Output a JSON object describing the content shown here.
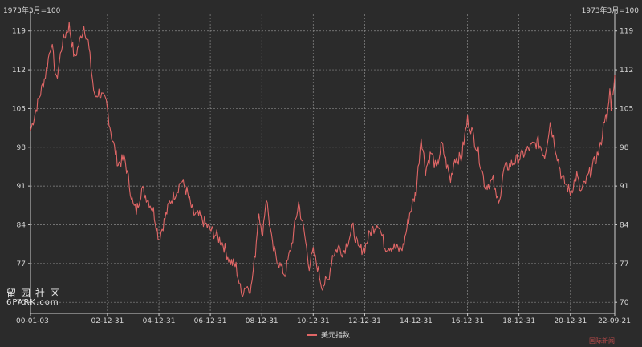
{
  "chart_data": {
    "type": "line",
    "unit_label": "1973年3月=100",
    "ylim": [
      68,
      122
    ],
    "y_ticks": [
      70,
      77,
      84,
      91,
      98,
      105,
      112,
      119
    ],
    "x_ticks": [
      "00-01-03",
      "02-12-31",
      "04-12-31",
      "06-12-31",
      "08-12-31",
      "10-12-31",
      "12-12-31",
      "14-12-31",
      "16-12-31",
      "18-12-31",
      "20-12-31",
      "22-09-21"
    ],
    "grid": true,
    "legend_position": "bottom-center",
    "series": [
      {
        "name": "美元指数",
        "color": "#e06666",
        "points": [
          [
            "2000-01-03",
            101.0
          ],
          [
            "2000-04-15",
            106.0
          ],
          [
            "2000-08-01",
            111.0
          ],
          [
            "2000-10-25",
            117.0
          ],
          [
            "2001-01-05",
            110.0
          ],
          [
            "2001-04-01",
            117.0
          ],
          [
            "2001-07-05",
            120.0
          ],
          [
            "2001-09-20",
            114.0
          ],
          [
            "2001-12-01",
            117.0
          ],
          [
            "2002-01-30",
            120.0
          ],
          [
            "2002-04-01",
            117.0
          ],
          [
            "2002-07-01",
            107.0
          ],
          [
            "2002-09-01",
            108.0
          ],
          [
            "2002-12-15",
            106.0
          ],
          [
            "2003-03-01",
            100.0
          ],
          [
            "2003-06-01",
            95.0
          ],
          [
            "2003-09-01",
            96.0
          ],
          [
            "2003-12-31",
            87.5
          ],
          [
            "2004-02-15",
            86.5
          ],
          [
            "2004-05-01",
            90.5
          ],
          [
            "2004-08-01",
            88.5
          ],
          [
            "2004-10-15",
            86.5
          ],
          [
            "2004-12-31",
            81.5
          ],
          [
            "2005-03-01",
            84.0
          ],
          [
            "2005-06-01",
            88.0
          ],
          [
            "2005-09-01",
            90.0
          ],
          [
            "2005-11-15",
            92.0
          ],
          [
            "2006-02-01",
            90.0
          ],
          [
            "2006-05-01",
            86.0
          ],
          [
            "2006-08-01",
            85.5
          ],
          [
            "2006-12-01",
            83.5
          ],
          [
            "2007-04-01",
            82.0
          ],
          [
            "2007-07-01",
            80.5
          ],
          [
            "2007-10-01",
            77.5
          ],
          [
            "2007-12-31",
            76.5
          ],
          [
            "2008-03-15",
            71.5
          ],
          [
            "2008-05-15",
            73.0
          ],
          [
            "2008-08-01",
            72.5
          ],
          [
            "2008-10-01",
            79.0
          ],
          [
            "2008-11-20",
            87.0
          ],
          [
            "2008-12-31",
            81.5
          ],
          [
            "2009-03-05",
            89.0
          ],
          [
            "2009-06-01",
            80.0
          ],
          [
            "2009-09-01",
            77.0
          ],
          [
            "2009-11-25",
            75.0
          ],
          [
            "2010-03-01",
            80.5
          ],
          [
            "2010-06-07",
            88.0
          ],
          [
            "2010-09-01",
            82.0
          ],
          [
            "2010-11-04",
            76.5
          ],
          [
            "2010-12-31",
            79.0
          ],
          [
            "2011-03-01",
            76.5
          ],
          [
            "2011-05-01",
            73.0
          ],
          [
            "2011-08-01",
            74.0
          ],
          [
            "2011-10-01",
            78.5
          ],
          [
            "2011-12-31",
            80.0
          ],
          [
            "2012-03-01",
            79.0
          ],
          [
            "2012-07-20",
            83.5
          ],
          [
            "2012-10-01",
            79.5
          ],
          [
            "2012-12-31",
            79.8
          ],
          [
            "2013-03-15",
            82.5
          ],
          [
            "2013-07-08",
            84.5
          ],
          [
            "2013-10-15",
            80.0
          ],
          [
            "2013-12-31",
            80.2
          ],
          [
            "2014-05-01",
            79.5
          ],
          [
            "2014-07-01",
            80.0
          ],
          [
            "2014-09-30",
            86.0
          ],
          [
            "2014-12-31",
            90.0
          ],
          [
            "2015-03-13",
            100.0
          ],
          [
            "2015-05-15",
            94.0
          ],
          [
            "2015-08-01",
            97.0
          ],
          [
            "2015-10-15",
            94.0
          ],
          [
            "2015-12-31",
            98.5
          ],
          [
            "2016-05-03",
            92.0
          ],
          [
            "2016-07-01",
            96.0
          ],
          [
            "2016-10-01",
            96.0
          ],
          [
            "2016-12-31",
            103.0
          ],
          [
            "2017-03-01",
            101.0
          ],
          [
            "2017-06-01",
            97.0
          ],
          [
            "2017-09-08",
            91.0
          ],
          [
            "2017-12-31",
            92.0
          ],
          [
            "2018-02-15",
            88.5
          ],
          [
            "2018-04-15",
            89.5
          ],
          [
            "2018-06-01",
            94.0
          ],
          [
            "2018-12-31",
            96.0
          ],
          [
            "2019-05-01",
            97.5
          ],
          [
            "2019-09-30",
            99.0
          ],
          [
            "2019-12-31",
            96.5
          ],
          [
            "2020-03-19",
            102.5
          ],
          [
            "2020-06-01",
            98.0
          ],
          [
            "2020-09-01",
            92.5
          ],
          [
            "2020-12-31",
            89.8
          ],
          [
            "2021-03-31",
            93.0
          ],
          [
            "2021-05-25",
            89.8
          ],
          [
            "2021-09-01",
            92.5
          ],
          [
            "2021-12-31",
            96.0
          ],
          [
            "2022-03-01",
            98.0
          ],
          [
            "2022-05-13",
            104.5
          ],
          [
            "2022-06-01",
            102.0
          ],
          [
            "2022-07-14",
            108.5
          ],
          [
            "2022-08-01",
            105.5
          ],
          [
            "2022-09-21",
            111.0
          ]
        ]
      }
    ]
  },
  "watermark": {
    "line1": "留园社区",
    "line2": "6PARK.com"
  },
  "corner_mark": "国际新闻"
}
